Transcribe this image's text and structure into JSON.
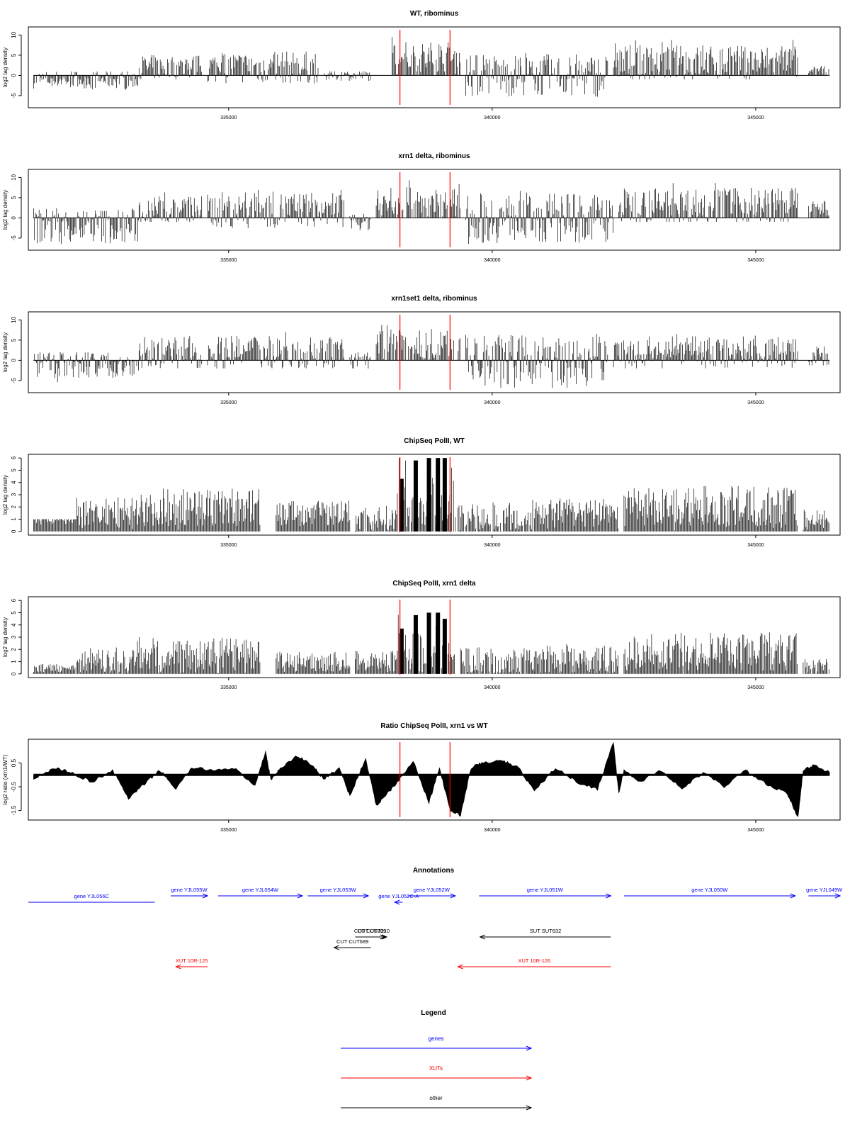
{
  "colors": {
    "signal": "#000000",
    "marker": "#ff0000",
    "gene": "#0000ff",
    "xut": "#ff0000",
    "other": "#000000",
    "frame": "#000000"
  },
  "x_axis": {
    "min": 331200,
    "max": 346600,
    "ticks": [
      "335000",
      "340000",
      "345000"
    ],
    "tick_values": [
      335000,
      340000,
      345000
    ]
  },
  "markers": [
    338250,
    339200
  ],
  "chart_data": [
    {
      "type": "bar",
      "title": "WT, ribominus",
      "ylabel": "log2 tag density",
      "ylim": [
        -8,
        12
      ],
      "yticks": [
        "-5",
        "0",
        "5",
        "10"
      ],
      "ytick_values": [
        -5,
        0,
        5,
        10
      ],
      "regions": [
        {
          "x": [
            331300,
            333300
          ],
          "ymin": -4,
          "ymax": 1,
          "base": -1
        },
        {
          "x": [
            333300,
            334500
          ],
          "ymin": -1,
          "ymax": 6,
          "base": 2
        },
        {
          "x": [
            334600,
            336700
          ],
          "ymin": -2,
          "ymax": 7,
          "base": 2
        },
        {
          "x": [
            336800,
            337700
          ],
          "ymin": -2,
          "ymax": 1,
          "base": 0
        },
        {
          "x": [
            338100,
            339400
          ],
          "ymin": 0,
          "ymax": 10,
          "base": 4
        },
        {
          "x": [
            339500,
            342200
          ],
          "ymin": -6,
          "ymax": 6,
          "base": 0
        },
        {
          "x": [
            342300,
            345800
          ],
          "ymin": -1,
          "ymax": 9,
          "base": 3
        },
        {
          "x": [
            346000,
            346400
          ],
          "ymin": 0,
          "ymax": 3,
          "base": 1
        }
      ]
    },
    {
      "type": "bar",
      "title": "xrn1 delta, ribominus",
      "ylabel": "log2 tag density",
      "ylim": [
        -8,
        12
      ],
      "yticks": [
        "-5",
        "0",
        "5",
        "10"
      ],
      "ytick_values": [
        -5,
        0,
        5,
        10
      ],
      "regions": [
        {
          "x": [
            331300,
            333300
          ],
          "ymin": -7,
          "ymax": 3,
          "base": -2
        },
        {
          "x": [
            333300,
            334500
          ],
          "ymin": -1,
          "ymax": 7,
          "base": 2
        },
        {
          "x": [
            334600,
            337200
          ],
          "ymin": -3,
          "ymax": 7,
          "base": 2
        },
        {
          "x": [
            337300,
            337700
          ],
          "ymin": -4,
          "ymax": 1,
          "base": -1
        },
        {
          "x": [
            337800,
            339400
          ],
          "ymin": 0,
          "ymax": 10,
          "base": 3
        },
        {
          "x": [
            339500,
            342300
          ],
          "ymin": -7,
          "ymax": 7,
          "base": 0
        },
        {
          "x": [
            342400,
            345800
          ],
          "ymin": -1,
          "ymax": 9,
          "base": 3
        },
        {
          "x": [
            346000,
            346400
          ],
          "ymin": 0,
          "ymax": 5,
          "base": 2
        }
      ]
    },
    {
      "type": "bar",
      "title": "xrn1set1 delta, ribominus",
      "ylabel": "log2 tag density",
      "ylim": [
        -8,
        12
      ],
      "yticks": [
        "-5",
        "0",
        "5",
        "10"
      ],
      "ytick_values": [
        -5,
        0,
        5,
        10
      ],
      "regions": [
        {
          "x": [
            331300,
            333300
          ],
          "ymin": -6,
          "ymax": 2,
          "base": -1
        },
        {
          "x": [
            333300,
            334500
          ],
          "ymin": -2,
          "ymax": 7,
          "base": 2
        },
        {
          "x": [
            334600,
            337200
          ],
          "ymin": -2,
          "ymax": 7,
          "base": 2
        },
        {
          "x": [
            337300,
            337700
          ],
          "ymin": -3,
          "ymax": 2,
          "base": 0
        },
        {
          "x": [
            337800,
            339400
          ],
          "ymin": 0,
          "ymax": 10,
          "base": 3
        },
        {
          "x": [
            339500,
            342200
          ],
          "ymin": -7,
          "ymax": 7,
          "base": 0
        },
        {
          "x": [
            342300,
            345800
          ],
          "ymin": -2,
          "ymax": 7,
          "base": 2
        },
        {
          "x": [
            346000,
            346400
          ],
          "ymin": -2,
          "ymax": 4,
          "base": 1
        }
      ]
    },
    {
      "type": "bar",
      "title": "ChipSeq PolII, WT",
      "ylabel": "log2 tag density",
      "ylim": [
        -0.3,
        6.3
      ],
      "yticks": [
        "0",
        "1",
        "2",
        "3",
        "4",
        "5",
        "6"
      ],
      "ytick_values": [
        0,
        1,
        2,
        3,
        4,
        5,
        6
      ],
      "regions": [
        {
          "x": [
            331300,
            332100
          ],
          "ymin": 0,
          "ymax": 1,
          "base": 1
        },
        {
          "x": [
            332100,
            333200
          ],
          "ymin": 0,
          "ymax": 3,
          "base": 1.5
        },
        {
          "x": [
            333200,
            335600
          ],
          "ymin": 0,
          "ymax": 3.5,
          "base": 2
        },
        {
          "x": [
            335900,
            337300
          ],
          "ymin": 0,
          "ymax": 2.5,
          "base": 1.5
        },
        {
          "x": [
            337400,
            338200
          ],
          "ymin": 0,
          "ymax": 2.5,
          "base": 1
        },
        {
          "x": [
            338200,
            339300
          ],
          "ymin": 0,
          "ymax": 6,
          "base": 1.5
        },
        {
          "x": [
            339300,
            340800
          ],
          "ymin": 0,
          "ymax": 2.8,
          "base": 1
        },
        {
          "x": [
            340800,
            342400
          ],
          "ymin": 0,
          "ymax": 2.8,
          "base": 1.5
        },
        {
          "x": [
            342500,
            345800
          ],
          "ymin": 0,
          "ymax": 3.8,
          "base": 2
        },
        {
          "x": [
            345900,
            346400
          ],
          "ymin": 0,
          "ymax": 2,
          "base": 1
        }
      ],
      "peaks": [
        {
          "x": 338280,
          "y": 4.3
        },
        {
          "x": 338550,
          "y": 5.8
        },
        {
          "x": 338800,
          "y": 6
        },
        {
          "x": 338970,
          "y": 6
        },
        {
          "x": 339100,
          "y": 6
        }
      ]
    },
    {
      "type": "bar",
      "title": "ChipSeq PolII, xrn1 delta",
      "ylabel": "log2 tag density",
      "ylim": [
        -0.3,
        6.3
      ],
      "yticks": [
        "0",
        "1",
        "2",
        "3",
        "4",
        "5",
        "6"
      ],
      "ytick_values": [
        0,
        1,
        2,
        3,
        4,
        5,
        6
      ],
      "regions": [
        {
          "x": [
            331300,
            332100
          ],
          "ymin": 0,
          "ymax": 0.8,
          "base": 0.5
        },
        {
          "x": [
            332100,
            333200
          ],
          "ymin": 0,
          "ymax": 2.2,
          "base": 1
        },
        {
          "x": [
            333200,
            335600
          ],
          "ymin": 0,
          "ymax": 3.2,
          "base": 1.5
        },
        {
          "x": [
            335900,
            337300
          ],
          "ymin": 0,
          "ymax": 1.8,
          "base": 1
        },
        {
          "x": [
            337400,
            338200
          ],
          "ymin": 0,
          "ymax": 2,
          "base": 1
        },
        {
          "x": [
            338200,
            339300
          ],
          "ymin": 0,
          "ymax": 5,
          "base": 1.5
        },
        {
          "x": [
            339400,
            340800
          ],
          "ymin": 0,
          "ymax": 2.5,
          "base": 1
        },
        {
          "x": [
            340800,
            342400
          ],
          "ymin": 0,
          "ymax": 2.5,
          "base": 1.2
        },
        {
          "x": [
            342500,
            345800
          ],
          "ymin": 0,
          "ymax": 3.5,
          "base": 1.8
        },
        {
          "x": [
            345900,
            346400
          ],
          "ymin": 0,
          "ymax": 1.5,
          "base": 0.6
        }
      ],
      "peaks": [
        {
          "x": 338280,
          "y": 3.7
        },
        {
          "x": 338550,
          "y": 4.8
        },
        {
          "x": 338800,
          "y": 5
        },
        {
          "x": 338970,
          "y": 5
        },
        {
          "x": 339100,
          "y": 4.5
        }
      ]
    },
    {
      "type": "area",
      "title": "Ratio ChipSeq PolII, xrn1 vs WT",
      "ylabel": "log2 ratio (xrn1/WT)",
      "ylim": [
        -1.9,
        1.5
      ],
      "yticks": [
        "-1.5",
        "-0.5",
        "0.5"
      ],
      "ytick_values": [
        -1.5,
        -0.5,
        0.5
      ],
      "baseline": 0,
      "x": [
        331300,
        331700,
        332000,
        332400,
        332800,
        333100,
        333400,
        333700,
        334000,
        334300,
        334700,
        335100,
        335500,
        335700,
        335800,
        336000,
        336300,
        336600,
        336800,
        337100,
        337300,
        337600,
        337800,
        338000,
        338200,
        338500,
        338800,
        339000,
        339200,
        339400,
        339600,
        339800,
        340200,
        340500,
        340800,
        341200,
        341600,
        342000,
        342300,
        342400,
        342500,
        342800,
        343200,
        343600,
        344000,
        344400,
        344800,
        345200,
        345600,
        345800,
        345900,
        346100,
        346400
      ],
      "values": [
        -0.2,
        0.3,
        0.1,
        -0.3,
        0.2,
        -1.0,
        -0.4,
        0.2,
        -0.6,
        0.3,
        0.2,
        0.3,
        -0.5,
        1.0,
        -0.2,
        0.3,
        0.8,
        0.4,
        -0.2,
        0.3,
        -0.9,
        0.7,
        -1.3,
        -0.8,
        -0.3,
        0.6,
        -1.2,
        0.3,
        -1.5,
        -1.7,
        0.3,
        0.5,
        0.6,
        0.3,
        -0.7,
        0.3,
        -0.3,
        -0.6,
        1.4,
        -0.8,
        0.2,
        -0.3,
        0.2,
        -0.6,
        0.1,
        -0.5,
        0.2,
        -0.4,
        -0.8,
        -1.8,
        0.2,
        0.4,
        0.1
      ]
    }
  ],
  "annotations": {
    "title": "Annotations",
    "features": [
      {
        "label": "gene YJL056C",
        "kind": "gene",
        "start": 331200,
        "end": 333600,
        "row": "gene_lower",
        "strand": "none"
      },
      {
        "label": "gene YJL055W",
        "kind": "gene",
        "start": 333900,
        "end": 334600,
        "row": "gene_upper",
        "strand": "+"
      },
      {
        "label": "gene YJL054W",
        "kind": "gene",
        "start": 334800,
        "end": 336400,
        "row": "gene_upper",
        "strand": "+"
      },
      {
        "label": "gene YJL053W",
        "kind": "gene",
        "start": 336500,
        "end": 337650,
        "row": "gene_upper",
        "strand": "+"
      },
      {
        "label": "gene YJL052C-A",
        "kind": "gene",
        "start": 338150,
        "end": 338300,
        "row": "gene_mid",
        "strand": "-"
      },
      {
        "label": "gene YJL052W",
        "kind": "gene",
        "start": 338400,
        "end": 339300,
        "row": "gene_upper",
        "strand": "+"
      },
      {
        "label": "gene YJL051W",
        "kind": "gene",
        "start": 339750,
        "end": 342250,
        "row": "gene_upper",
        "strand": "+"
      },
      {
        "label": "gene YJL050W",
        "kind": "gene",
        "start": 342500,
        "end": 345750,
        "row": "gene_upper",
        "strand": "+"
      },
      {
        "label": "gene YJL049W",
        "kind": "gene",
        "start": 346000,
        "end": 346600,
        "row": "gene_upper",
        "strand": "+"
      },
      {
        "label": "SUT SUT632",
        "kind": "other",
        "start": 339770,
        "end": 342250,
        "row": "other_upper",
        "strand": "-"
      },
      {
        "label": "CUT CUT209",
        "kind": "other",
        "start": 337400,
        "end": 337970,
        "row": "other_upper",
        "strand": "+"
      },
      {
        "label": "CUT CUT210",
        "kind": "other",
        "start": 337500,
        "end": 338000,
        "row": "other_upper",
        "strand": "+"
      },
      {
        "label": "CUT CUT689",
        "kind": "other",
        "start": 337000,
        "end": 337700,
        "row": "other_lower",
        "strand": "-"
      },
      {
        "label": "XUT 10R-125",
        "kind": "xut",
        "start": 334000,
        "end": 334600,
        "row": "xut",
        "strand": "-"
      },
      {
        "label": "XUT 10R-126",
        "kind": "xut",
        "start": 339350,
        "end": 342250,
        "row": "xut",
        "strand": "-"
      }
    ]
  },
  "legend": {
    "title": "Legend",
    "items": [
      {
        "label": "genes",
        "kind": "gene"
      },
      {
        "label": "XUTs",
        "kind": "xut"
      },
      {
        "label": "other",
        "kind": "other"
      }
    ]
  }
}
